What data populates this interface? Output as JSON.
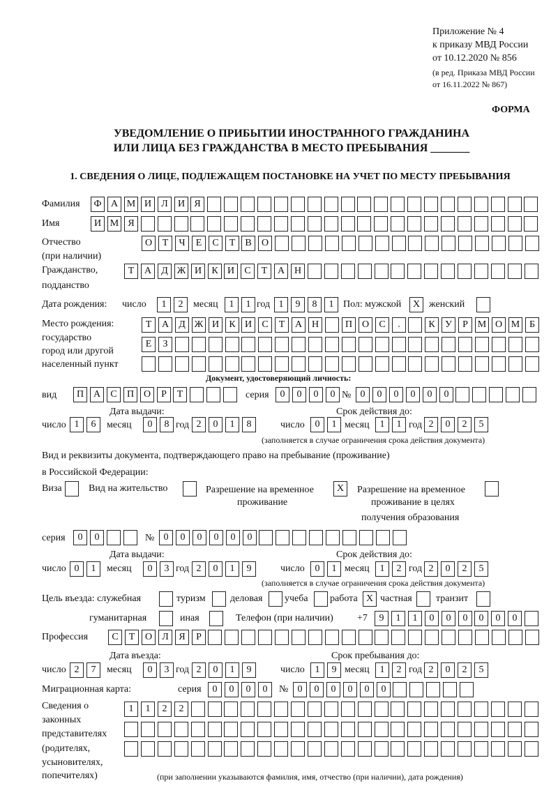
{
  "header": {
    "appendix": "Приложение № 4",
    "order": "к приказу МВД России",
    "order_date": "от 10.12.2020 № 856",
    "edition1": "(в ред. Приказа МВД России",
    "edition2": "от 16.11.2022 № 867)",
    "form": "ФОРМА",
    "title1": "УВЕДОМЛЕНИЕ О ПРИБЫТИИ ИНОСТРАННОГО ГРАЖДАНИНА",
    "title2": "ИЛИ ЛИЦА БЕЗ ГРАЖДАНСТВА В МЕСТО ПРЕБЫВАНИЯ _______",
    "section1": "1. СВЕДЕНИЯ О ЛИЦЕ, ПОДЛЕЖАЩЕМ ПОСТАНОВКЕ НА УЧЕТ ПО МЕСТУ ПРЕБЫВАНИЯ"
  },
  "labels": {
    "surname": "Фамилия",
    "name": "Имя",
    "patronymic": "Отчество",
    "patronymic2": "(при наличии)",
    "citizenship": "Гражданство,",
    "citizenship2": "подданство",
    "birth_date": "Дата рождения:",
    "day": "число",
    "month": "месяц",
    "year": "год",
    "sex": "Пол: мужской",
    "female": "женский",
    "birth_place": "Место рождения:",
    "state": "государство",
    "city": "город или другой",
    "locality": "населенный пункт",
    "id_doc": "Документ, удостоверяющий личность:",
    "kind": "вид",
    "series": "серия",
    "number": "№",
    "issue_date": "Дата выдачи:",
    "valid_until": "Срок действия до:",
    "validity_note": "(заполняется в случае ограничения срока действия документа)",
    "stay_doc1": "Вид и реквизиты документа, подтверждающего право на пребывание (проживание)",
    "stay_doc2": "в Российской Федерации:",
    "visa": "Виза",
    "residence": "Вид на жительство",
    "temp1": "Разрешение на временное",
    "temp2": "проживание",
    "edu1": "Разрешение на временное",
    "edu2": "проживание в целях",
    "edu3": "получения образования",
    "purpose": "Цель въезда: служебная",
    "tourism": "туризм",
    "business": "деловая",
    "study": "учеба",
    "work": "работа",
    "private": "частная",
    "transit": "транзит",
    "humanitarian": "гуманитарная",
    "other": "иная",
    "phone": "Телефон (при наличии)",
    "phone_prefix": "+7",
    "profession": "Профессия",
    "entry_date": "Дата въезда:",
    "stay_until": "Срок пребывания до:",
    "migration_card": "Миграционная карта:",
    "reps1": "Сведения о",
    "reps2": "законных",
    "reps3": "представителях",
    "reps4": "(родителях,",
    "reps5": "усыновителях,",
    "reps6": "попечителях)",
    "reps_note": "(при заполнении указываются фамилия, имя, отчество (при наличии), дата рождения)"
  },
  "fields": {
    "surname": "ФАМИЛИЯ",
    "name": "ИМЯ",
    "patronymic": "ОТЧЕСТВО",
    "citizenship": "ТАДЖИКИСТАН",
    "birth_day": "12",
    "birth_month": "11",
    "birth_year": "1981",
    "sex_male": "X",
    "sex_female": "",
    "birth_place1": "ТАДЖИКИСТАН ПОС. КУРМОМБ",
    "birth_place2": "ЕЗ",
    "birth_place3": "",
    "id_kind": "ПАСПОРТ",
    "id_series": "0000",
    "id_number": "000000",
    "id_issue_day": "16",
    "id_issue_month": "08",
    "id_issue_year": "2018",
    "id_valid_day": "01",
    "id_valid_month": "11",
    "id_valid_year": "2025",
    "visa": "",
    "residence": "",
    "temp_residence": "X",
    "temp_residence_edu": "",
    "stay_series": "00",
    "stay_number": "000000",
    "stay_issue_day": "01",
    "stay_issue_month": "03",
    "stay_issue_year": "2019",
    "stay_valid_day": "01",
    "stay_valid_month": "12",
    "stay_valid_year": "2025",
    "p_official": "",
    "p_tourism": "",
    "p_business": "",
    "p_study": "",
    "p_work": "X",
    "p_private": "",
    "p_transit": "",
    "p_humanitarian": "",
    "p_other": "",
    "phone": "911000000",
    "profession": "СТОЛЯР",
    "entry_day": "27",
    "entry_month": "03",
    "entry_year": "2019",
    "stay_until_day": "19",
    "stay_until_month": "12",
    "stay_until_year": "2025",
    "mc_series": "0000",
    "mc_number": "000000",
    "reps1": "1122",
    "reps2": "",
    "reps3": ""
  }
}
